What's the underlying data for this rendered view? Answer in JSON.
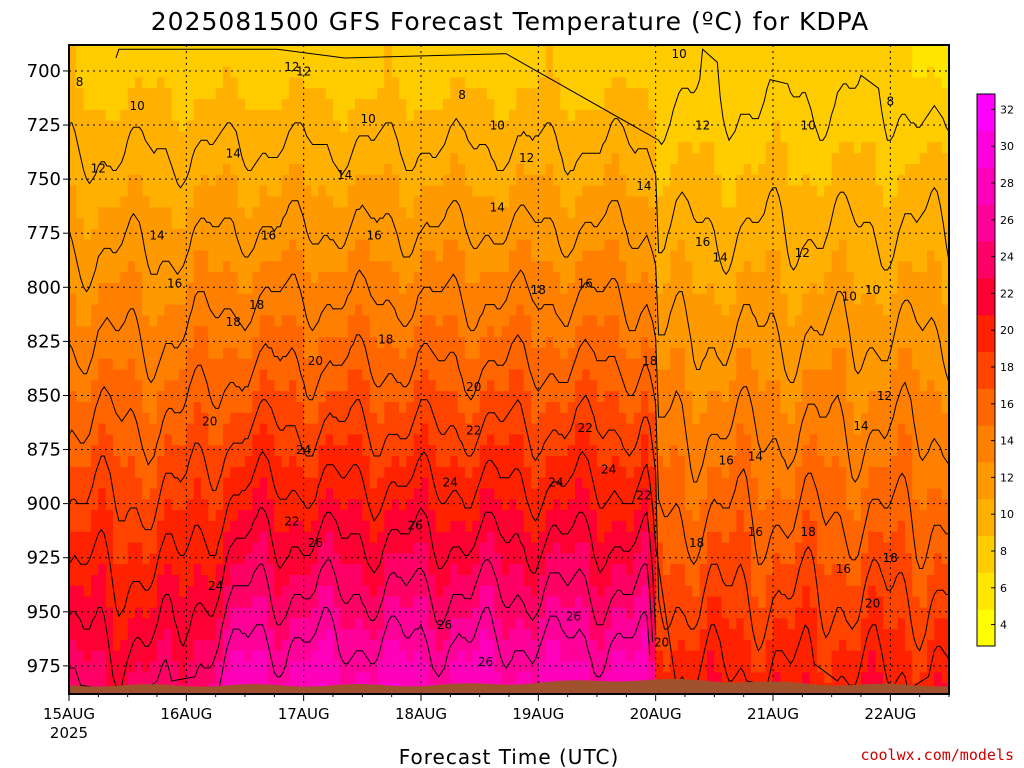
{
  "title": "2025081500 GFS Forecast Temperature (ºC) for KDPA",
  "credit": "coolwx.com/models",
  "chart_data": {
    "type": "heatmap",
    "title": "2025081500 GFS Forecast Temperature (ºC) for KDPA",
    "xlabel": "Forecast Time (UTC)",
    "ylabel": "",
    "x_ticks": [
      "15AUG",
      "16AUG",
      "17AUG",
      "18AUG",
      "19AUG",
      "20AUG",
      "21AUG",
      "22AUG"
    ],
    "x_year_label": "2025",
    "y_ticks": [
      700,
      725,
      750,
      775,
      800,
      825,
      850,
      875,
      900,
      925,
      950,
      975
    ],
    "ylim": [
      988,
      688
    ],
    "y_scale": "pressure (inverted)",
    "grid": true,
    "colorbar": {
      "ticks": [
        4,
        6,
        8,
        10,
        12,
        14,
        16,
        18,
        20,
        22,
        24,
        26,
        28,
        30,
        32
      ],
      "colors": [
        "#ffff00",
        "#ffe600",
        "#ffcc00",
        "#ffb000",
        "#ff9900",
        "#ff8000",
        "#ff6600",
        "#ff4400",
        "#ff2200",
        "#ff0033",
        "#ff0066",
        "#ff0099",
        "#ff00bb",
        "#ff00dd",
        "#ff00ff"
      ],
      "placement": "right"
    },
    "ground_color": "#a0522d",
    "contour_labels": [
      {
        "text": "8",
        "x": 0.09,
        "p": 707
      },
      {
        "text": "10",
        "x": 0.58,
        "p": 718
      },
      {
        "text": "12",
        "x": 0.25,
        "p": 747
      },
      {
        "text": "14",
        "x": 0.75,
        "p": 778
      },
      {
        "text": "16",
        "x": 0.9,
        "p": 800
      },
      {
        "text": "18",
        "x": 1.4,
        "p": 818
      },
      {
        "text": "20",
        "x": 1.2,
        "p": 864
      },
      {
        "text": "22",
        "x": 1.9,
        "p": 910
      },
      {
        "text": "24",
        "x": 1.25,
        "p": 940
      },
      {
        "text": "12",
        "x": 1.9,
        "p": 700
      },
      {
        "text": "14",
        "x": 1.4,
        "p": 740
      },
      {
        "text": "16",
        "x": 1.7,
        "p": 778
      },
      {
        "text": "18",
        "x": 1.6,
        "p": 810
      },
      {
        "text": "20",
        "x": 2.1,
        "p": 836
      },
      {
        "text": "24",
        "x": 2.0,
        "p": 877
      },
      {
        "text": "26",
        "x": 2.1,
        "p": 920
      },
      {
        "text": "12",
        "x": 2.0,
        "p": 702
      },
      {
        "text": "10",
        "x": 2.55,
        "p": 724
      },
      {
        "text": "14",
        "x": 2.35,
        "p": 750
      },
      {
        "text": "16",
        "x": 2.6,
        "p": 778
      },
      {
        "text": "18",
        "x": 2.7,
        "p": 826
      },
      {
        "text": "20",
        "x": 3.45,
        "p": 848
      },
      {
        "text": "22",
        "x": 3.45,
        "p": 868
      },
      {
        "text": "24",
        "x": 3.25,
        "p": 892
      },
      {
        "text": "26",
        "x": 2.95,
        "p": 912
      },
      {
        "text": "26",
        "x": 3.2,
        "p": 958
      },
      {
        "text": "26",
        "x": 3.55,
        "p": 975
      },
      {
        "text": "8",
        "x": 3.35,
        "p": 713
      },
      {
        "text": "10",
        "x": 3.65,
        "p": 727
      },
      {
        "text": "12",
        "x": 3.9,
        "p": 742
      },
      {
        "text": "14",
        "x": 3.65,
        "p": 765
      },
      {
        "text": "18",
        "x": 4.0,
        "p": 803
      },
      {
        "text": "16",
        "x": 4.4,
        "p": 800
      },
      {
        "text": "22",
        "x": 4.4,
        "p": 867
      },
      {
        "text": "24",
        "x": 4.15,
        "p": 892
      },
      {
        "text": "24",
        "x": 4.6,
        "p": 886
      },
      {
        "text": "22",
        "x": 4.9,
        "p": 898
      },
      {
        "text": "26",
        "x": 4.3,
        "p": 954
      },
      {
        "text": "14",
        "x": 4.9,
        "p": 755
      },
      {
        "text": "18",
        "x": 4.95,
        "p": 836
      },
      {
        "text": "20",
        "x": 5.05,
        "p": 966
      },
      {
        "text": "10",
        "x": 5.2,
        "p": 694
      },
      {
        "text": "12",
        "x": 5.4,
        "p": 727
      },
      {
        "text": "16",
        "x": 5.4,
        "p": 781
      },
      {
        "text": "14",
        "x": 5.55,
        "p": 788
      },
      {
        "text": "18",
        "x": 5.35,
        "p": 920
      },
      {
        "text": "16",
        "x": 5.6,
        "p": 882
      },
      {
        "text": "14",
        "x": 5.85,
        "p": 880
      },
      {
        "text": "16",
        "x": 5.85,
        "p": 915
      },
      {
        "text": "18",
        "x": 6.3,
        "p": 915
      },
      {
        "text": "10",
        "x": 6.3,
        "p": 727
      },
      {
        "text": "12",
        "x": 6.25,
        "p": 786
      },
      {
        "text": "10",
        "x": 6.65,
        "p": 806
      },
      {
        "text": "10",
        "x": 6.85,
        "p": 803
      },
      {
        "text": "8",
        "x": 7.0,
        "p": 716
      },
      {
        "text": "12",
        "x": 6.95,
        "p": 852
      },
      {
        "text": "14",
        "x": 6.75,
        "p": 866
      },
      {
        "text": "16",
        "x": 6.6,
        "p": 932
      },
      {
        "text": "18",
        "x": 7.0,
        "p": 927
      },
      {
        "text": "20",
        "x": 6.85,
        "p": 948
      }
    ]
  }
}
